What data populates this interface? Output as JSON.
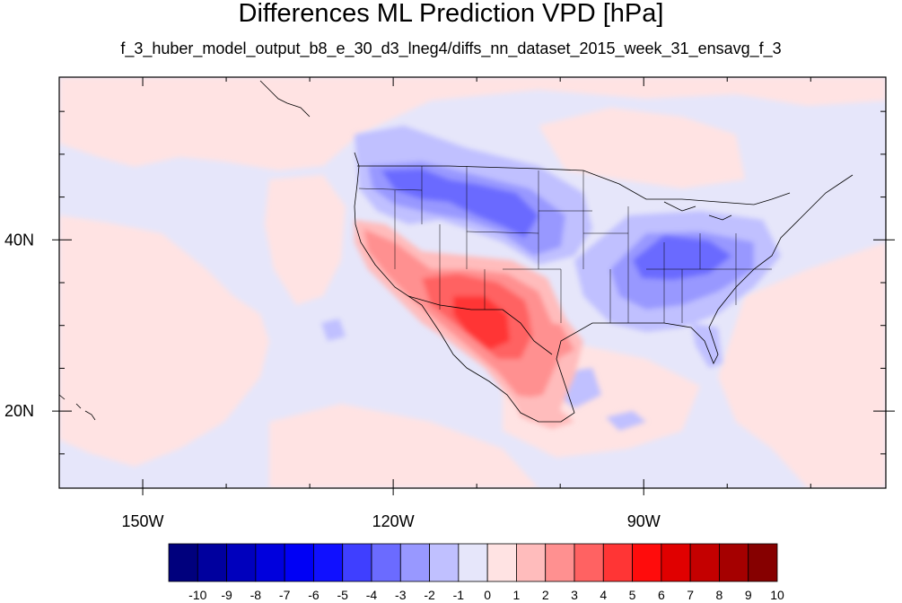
{
  "title": "Differences ML Prediction VPD [hPa]",
  "subtitle": "f_3_huber_model_output_b8_e_30_d3_lneg4/diffs_nn_dataset_2015_week_31_ensavg_f_3",
  "map": {
    "lon_range": [
      -160,
      -61
    ],
    "lat_range": [
      11,
      59
    ],
    "background_color": "#e6e6fa",
    "lon_labels": [
      {
        "value": -150,
        "text": "150W"
      },
      {
        "value": -120,
        "text": "120W"
      },
      {
        "value": -90,
        "text": "90W"
      }
    ],
    "lat_labels": [
      {
        "value": 40,
        "text": "40N"
      },
      {
        "value": 20,
        "text": "20N"
      }
    ],
    "minor_lon_ticks": [
      -160,
      -150,
      -140,
      -130,
      -120,
      -110,
      -100,
      -90,
      -80,
      -70
    ],
    "minor_lat_ticks": [
      15,
      20,
      25,
      30,
      35,
      40,
      45,
      50,
      55
    ]
  },
  "colorbar": {
    "labels": [
      "-10",
      "-9",
      "-8",
      "-7",
      "-6",
      "-5",
      "-4",
      "-3",
      "-2",
      "-1",
      "0",
      "1",
      "2",
      "3",
      "4",
      "5",
      "6",
      "7",
      "8",
      "9",
      "10"
    ],
    "colors": [
      "#00007d",
      "#00009e",
      "#0000bd",
      "#0000dd",
      "#0000f5",
      "#1010ff",
      "#3f3fff",
      "#6b6bff",
      "#9898ff",
      "#c0c0ff",
      "#e6e6fa",
      "#ffe3e3",
      "#ffbcbc",
      "#ff9090",
      "#ff6262",
      "#ff3535",
      "#ff0c0c",
      "#e00000",
      "#c40000",
      "#a50000",
      "#860000"
    ]
  }
}
